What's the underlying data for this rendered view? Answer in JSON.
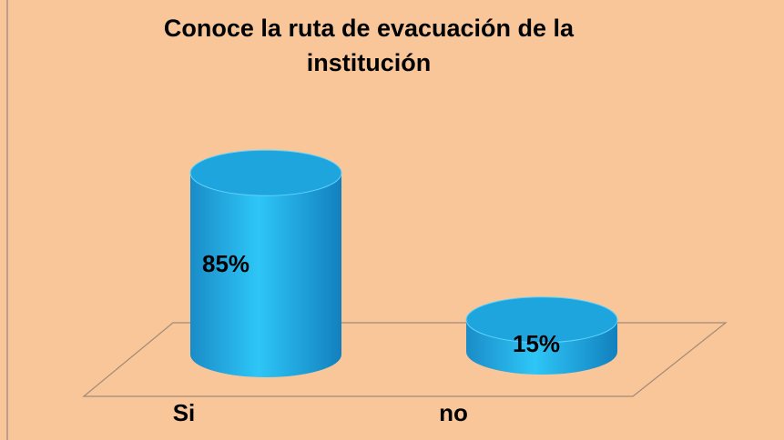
{
  "chart_data": {
    "type": "bar3d",
    "title": "Conoce la ruta de evacuación de la institución",
    "categories": [
      "Si",
      "no"
    ],
    "values": [
      85,
      15
    ],
    "value_labels": [
      "85%",
      "15%"
    ],
    "color": "#1ea5de"
  }
}
